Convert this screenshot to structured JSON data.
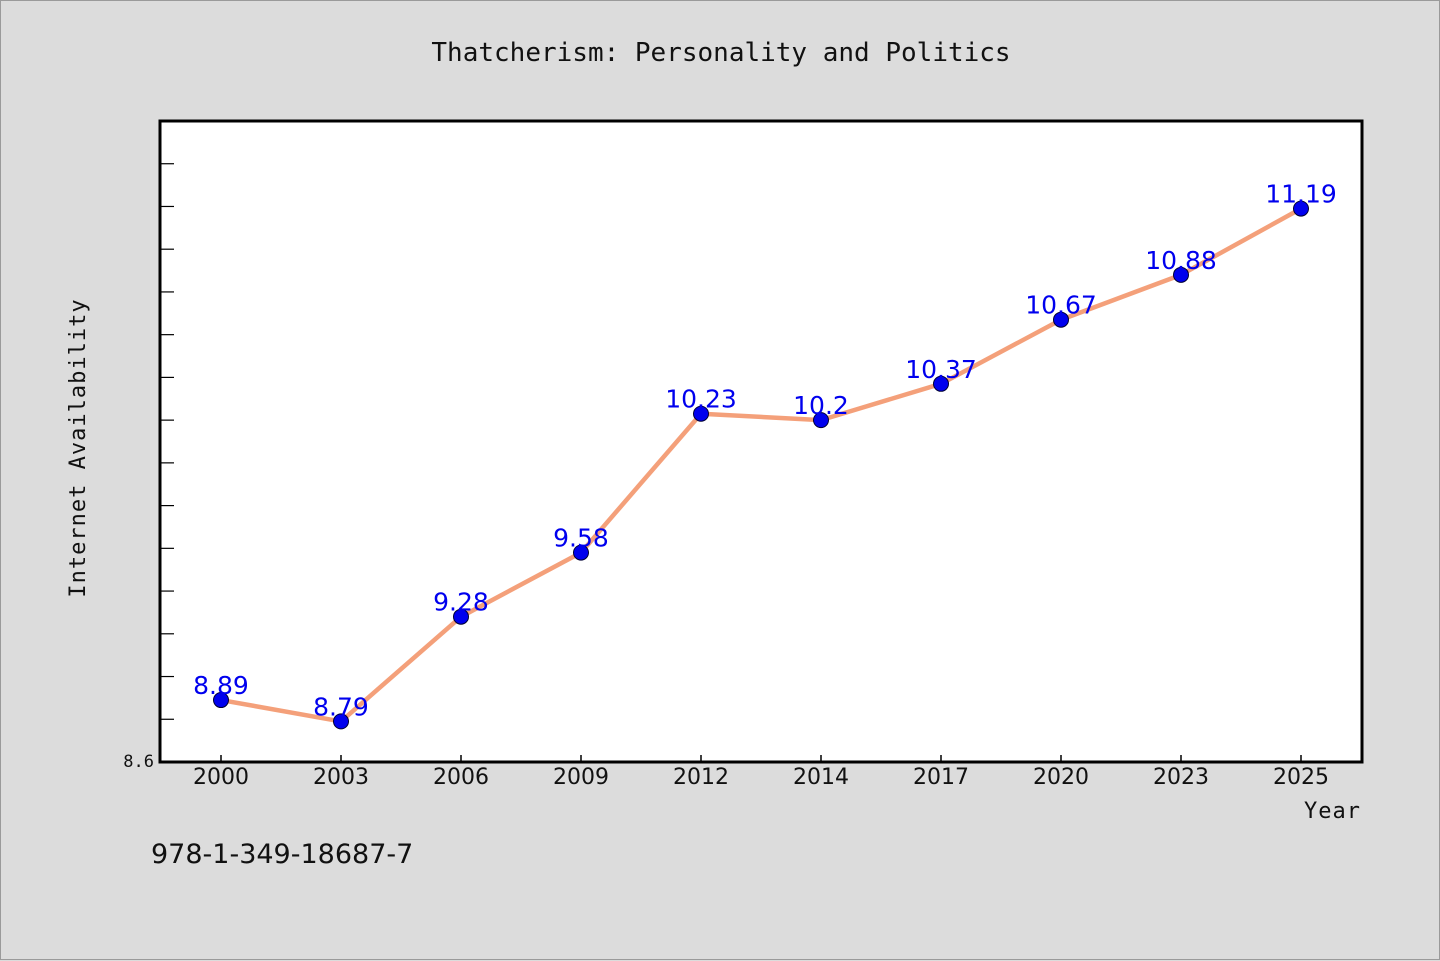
{
  "chart_data": {
    "type": "line",
    "title": "Thatcherism: Personality and Politics",
    "xlabel": "Year",
    "ylabel": "Internet Availability",
    "categories": [
      "2000",
      "2003",
      "2006",
      "2009",
      "2012",
      "2014",
      "2017",
      "2020",
      "2023",
      "2025"
    ],
    "series": [
      {
        "values": [
          8.89,
          8.79,
          9.28,
          9.58,
          10.23,
          10.2,
          10.37,
          10.67,
          10.88,
          11.19
        ],
        "labels": [
          "8.89",
          "8.79",
          "9.28",
          "9.58",
          "10.23",
          "10.2",
          "10.37",
          "10.67",
          "10.88",
          "11.19"
        ],
        "line_color": "#f4a07a",
        "marker_color": "#0000ee"
      }
    ],
    "ylim": [
      8.6,
      11.6
    ],
    "ymin_label": "8.6",
    "grid": false,
    "legend": "none"
  },
  "footer": {
    "isbn": "978-1-349-18687-7"
  }
}
